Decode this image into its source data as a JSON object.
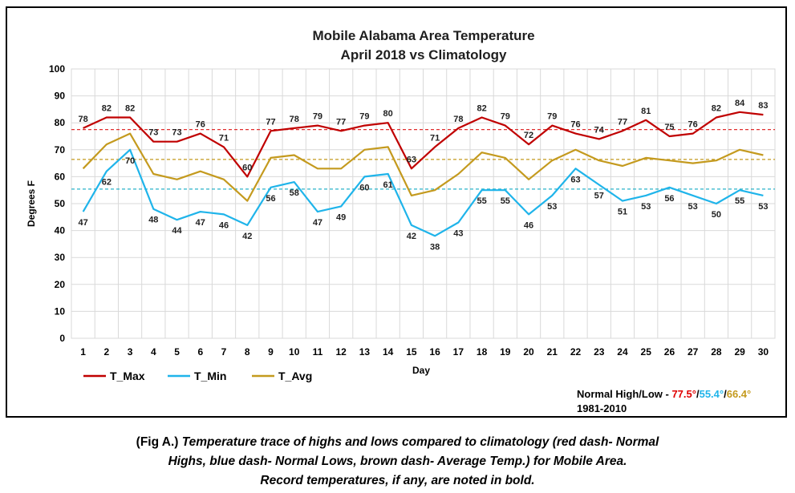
{
  "chart_data": {
    "type": "line",
    "title_line1": "Mobile Alabama Area Temperature",
    "title_line2": "April 2018 vs Climatology",
    "xlabel": "Day",
    "ylabel": "Degrees F",
    "ylim": [
      0,
      100
    ],
    "yticks": [
      0,
      10,
      20,
      30,
      40,
      50,
      60,
      70,
      80,
      90,
      100
    ],
    "grid": true,
    "legend_position": "bottom-left",
    "categories": [
      1,
      2,
      3,
      4,
      5,
      6,
      7,
      8,
      9,
      10,
      11,
      12,
      13,
      14,
      15,
      16,
      17,
      18,
      19,
      20,
      21,
      22,
      23,
      24,
      25,
      26,
      27,
      28,
      29,
      30
    ],
    "series": [
      {
        "name": "T_Max",
        "color": "#c00000",
        "values": [
          78,
          82,
          82,
          73,
          73,
          76,
          71,
          60,
          77,
          78,
          79,
          77,
          79,
          80,
          63,
          71,
          78,
          82,
          79,
          72,
          79,
          76,
          74,
          77,
          81,
          75,
          76,
          82,
          84,
          83
        ]
      },
      {
        "name": "T_Min",
        "color": "#1fb4ea",
        "values": [
          47,
          62,
          70,
          48,
          44,
          47,
          46,
          42,
          56,
          58,
          47,
          49,
          60,
          61,
          42,
          38,
          43,
          55,
          55,
          46,
          53,
          63,
          57,
          51,
          53,
          56,
          53,
          50,
          55,
          53
        ]
      },
      {
        "name": "T_Avg",
        "color": "#c49a1e",
        "values": [
          63,
          72,
          76,
          61,
          59,
          62,
          59,
          51,
          67,
          68,
          63,
          63,
          70,
          71,
          53,
          55,
          61,
          69,
          67,
          59,
          66,
          70,
          66,
          64,
          67,
          66,
          65,
          66,
          70,
          68
        ]
      }
    ],
    "reference_lines": [
      {
        "value": 77.5,
        "color": "#e03030"
      },
      {
        "value": 55.4,
        "color": "#2ab3c8"
      },
      {
        "value": 66.4,
        "color": "#c49a1e"
      }
    ],
    "normal_label": "Normal High/Low - ",
    "normal_high": "77.5°",
    "normal_low": "55.4°",
    "normal_avg": "66.4°",
    "separator": "/",
    "normal_period": "1981-2010"
  },
  "caption": {
    "prefix": "(Fig A.) ",
    "line1_rest": "Temperature trace of highs and lows compared to climatology (red dash- Normal",
    "line2": "Highs, blue dash- Normal Lows, brown dash- Average Temp.) for Mobile Area.",
    "line3": "Record temperatures, if any, are noted in bold."
  }
}
